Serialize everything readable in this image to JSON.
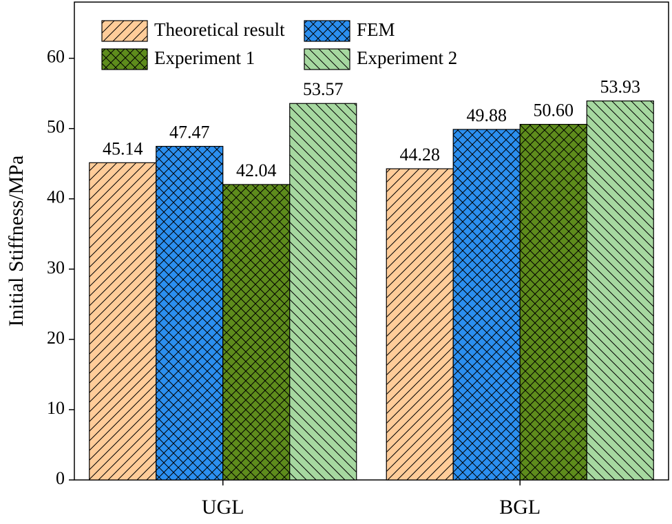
{
  "chart_data": {
    "type": "bar",
    "y_label": "Initial Stiffness/MPa",
    "categories": [
      "UGL",
      "BGL"
    ],
    "series": [
      {
        "name": "Theoretical result",
        "color": "#ffcc99",
        "values": [
          45.14,
          44.28
        ],
        "value_labels": [
          "45.14",
          "44.28"
        ]
      },
      {
        "name": "FEM",
        "color": "#2b8ff0",
        "values": [
          47.47,
          49.88
        ],
        "value_labels": [
          "47.47",
          "49.88"
        ]
      },
      {
        "name": "Experiment 1",
        "color": "#5e8c1c",
        "values": [
          42.04,
          50.6
        ],
        "value_labels": [
          "42.04",
          "50.60"
        ]
      },
      {
        "name": "Experiment 2",
        "color": "#a6d8a0",
        "values": [
          53.57,
          53.93
        ],
        "value_labels": [
          "53.57",
          "53.93"
        ]
      }
    ],
    "ylim": [
      0,
      68
    ],
    "yticks": [
      0,
      10,
      20,
      30,
      40,
      50,
      60
    ],
    "grid": false
  }
}
